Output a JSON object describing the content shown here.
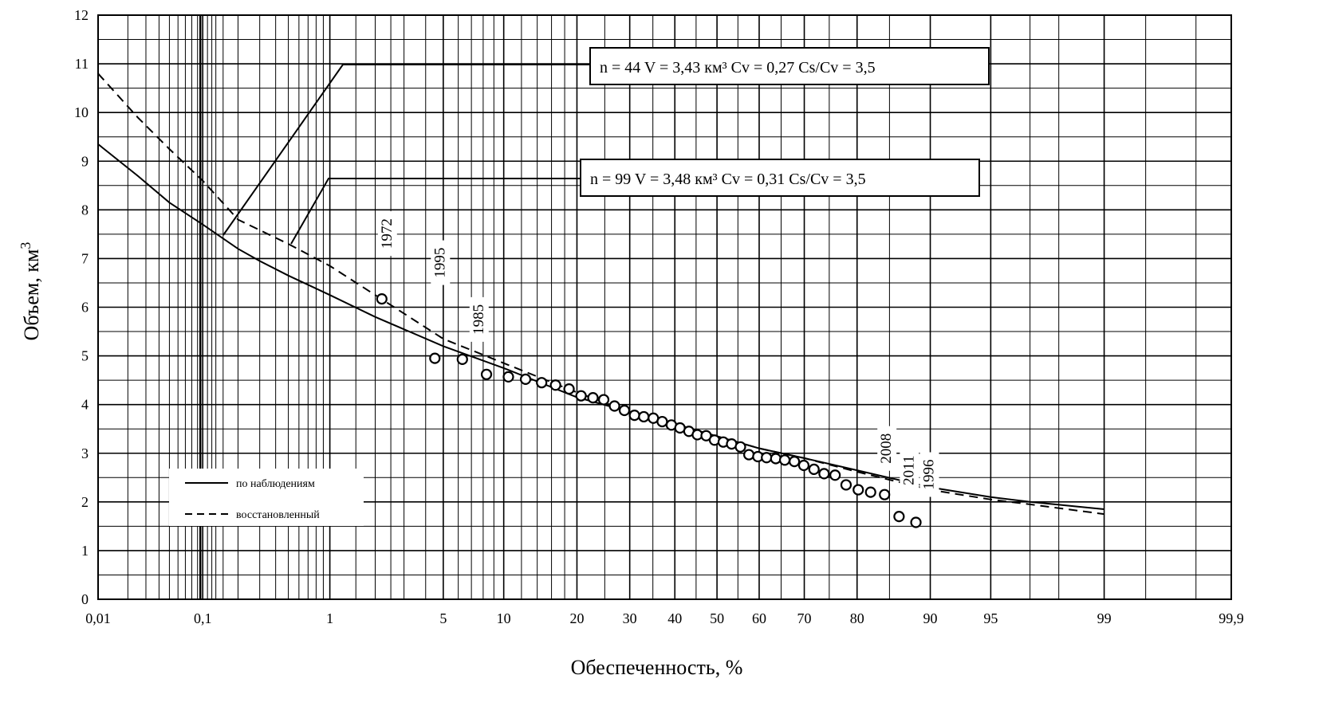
{
  "chart_data": {
    "type": "line",
    "xscale": "probability (normal)",
    "xlabel": "Обеспеченность, %",
    "ylabel": "Объем, км",
    "ylabel_sup": "3",
    "ylim": [
      0,
      12
    ],
    "xlim": [
      0.01,
      99.9
    ],
    "grid": true,
    "x_ticks": [
      {
        "v": 0.01,
        "label": "0,01"
      },
      {
        "v": 0.1,
        "label": "0,1"
      },
      {
        "v": 1,
        "label": "1"
      },
      {
        "v": 5,
        "label": "5"
      },
      {
        "v": 10,
        "label": "10"
      },
      {
        "v": 20,
        "label": "20"
      },
      {
        "v": 30,
        "label": "30"
      },
      {
        "v": 40,
        "label": "40"
      },
      {
        "v": 50,
        "label": "50"
      },
      {
        "v": 60,
        "label": "60"
      },
      {
        "v": 70,
        "label": "70"
      },
      {
        "v": 80,
        "label": "80"
      },
      {
        "v": 90,
        "label": "90"
      },
      {
        "v": 95,
        "label": "95"
      },
      {
        "v": 99,
        "label": "99"
      },
      {
        "v": 99.9,
        "label": "99,9"
      }
    ],
    "y_ticks": [
      "0",
      "1",
      "2",
      "3",
      "4",
      "5",
      "6",
      "7",
      "8",
      "9",
      "10",
      "11",
      "12"
    ],
    "series": [
      {
        "name": "по наблюдениям",
        "style": "solid",
        "x": [
          0.01,
          0.025,
          0.05,
          0.1,
          0.2,
          0.3,
          0.5,
          1,
          2,
          5,
          10,
          20,
          30,
          40,
          50,
          60,
          70,
          80,
          90,
          95,
          97,
          99
        ],
        "y": [
          9.35,
          8.7,
          8.15,
          7.7,
          7.2,
          6.95,
          6.65,
          6.25,
          5.8,
          5.2,
          4.75,
          4.15,
          3.85,
          3.6,
          3.35,
          3.1,
          2.9,
          2.65,
          2.3,
          2.1,
          2.0,
          1.85
        ]
      },
      {
        "name": "восстановленный",
        "style": "dashed",
        "x": [
          0.01,
          0.025,
          0.05,
          0.1,
          0.2,
          0.5,
          1,
          2,
          5,
          10,
          20,
          30,
          40,
          50,
          60,
          70,
          80,
          90,
          95,
          97,
          99
        ],
        "y": [
          10.8,
          9.9,
          9.25,
          8.6,
          7.8,
          7.3,
          6.85,
          6.25,
          5.35,
          4.85,
          4.25,
          3.85,
          3.6,
          3.35,
          3.1,
          2.9,
          2.62,
          2.25,
          2.05,
          1.95,
          1.75
        ]
      }
    ],
    "points": [
      {
        "x": 2.2,
        "y": 6.17,
        "year": "1972"
      },
      {
        "x": 4.5,
        "y": 4.95,
        "year": "1995"
      },
      {
        "x": 6.3,
        "y": 4.93,
        "year": "1985"
      },
      {
        "x": 8.3,
        "y": 4.62,
        "year": ""
      },
      {
        "x": 10.5,
        "y": 4.57,
        "year": ""
      },
      {
        "x": 12.5,
        "y": 4.52,
        "year": ""
      },
      {
        "x": 14.6,
        "y": 4.45,
        "year": ""
      },
      {
        "x": 16.6,
        "y": 4.4,
        "year": ""
      },
      {
        "x": 18.7,
        "y": 4.32,
        "year": ""
      },
      {
        "x": 20.7,
        "y": 4.18,
        "year": ""
      },
      {
        "x": 22.8,
        "y": 4.14,
        "year": ""
      },
      {
        "x": 24.8,
        "y": 4.1,
        "year": ""
      },
      {
        "x": 26.9,
        "y": 3.97,
        "year": ""
      },
      {
        "x": 28.9,
        "y": 3.88,
        "year": ""
      },
      {
        "x": 31.0,
        "y": 3.78,
        "year": ""
      },
      {
        "x": 33.0,
        "y": 3.75,
        "year": ""
      },
      {
        "x": 35.1,
        "y": 3.72,
        "year": ""
      },
      {
        "x": 37.1,
        "y": 3.65,
        "year": ""
      },
      {
        "x": 39.2,
        "y": 3.58,
        "year": ""
      },
      {
        "x": 41.2,
        "y": 3.52,
        "year": ""
      },
      {
        "x": 43.3,
        "y": 3.45,
        "year": ""
      },
      {
        "x": 45.3,
        "y": 3.38,
        "year": ""
      },
      {
        "x": 47.4,
        "y": 3.36,
        "year": ""
      },
      {
        "x": 49.4,
        "y": 3.27,
        "year": ""
      },
      {
        "x": 51.5,
        "y": 3.23,
        "year": ""
      },
      {
        "x": 53.5,
        "y": 3.19,
        "year": ""
      },
      {
        "x": 55.6,
        "y": 3.13,
        "year": ""
      },
      {
        "x": 57.6,
        "y": 2.97,
        "year": ""
      },
      {
        "x": 59.7,
        "y": 2.93,
        "year": ""
      },
      {
        "x": 61.7,
        "y": 2.91,
        "year": ""
      },
      {
        "x": 63.8,
        "y": 2.89,
        "year": ""
      },
      {
        "x": 65.8,
        "y": 2.86,
        "year": ""
      },
      {
        "x": 67.9,
        "y": 2.83,
        "year": ""
      },
      {
        "x": 69.9,
        "y": 2.75,
        "year": ""
      },
      {
        "x": 72.0,
        "y": 2.67,
        "year": ""
      },
      {
        "x": 74.0,
        "y": 2.58,
        "year": ""
      },
      {
        "x": 76.1,
        "y": 2.55,
        "year": ""
      },
      {
        "x": 78.1,
        "y": 2.35,
        "year": ""
      },
      {
        "x": 80.2,
        "y": 2.25,
        "year": ""
      },
      {
        "x": 82.2,
        "y": 2.2,
        "year": ""
      },
      {
        "x": 84.3,
        "y": 2.15,
        "year": "2008"
      },
      {
        "x": 86.3,
        "y": 1.7,
        "year": "2011"
      },
      {
        "x": 88.4,
        "y": 1.58,
        "year": "1996"
      }
    ],
    "annotations": [
      {
        "text": "n = 44  V = 3,43 км³   Cv = 0,27   Cs/Cv = 3,5"
      },
      {
        "text": "n = 99  V = 3,48 км³   Cv = 0,31   Cs/Cv = 3,5"
      }
    ]
  }
}
